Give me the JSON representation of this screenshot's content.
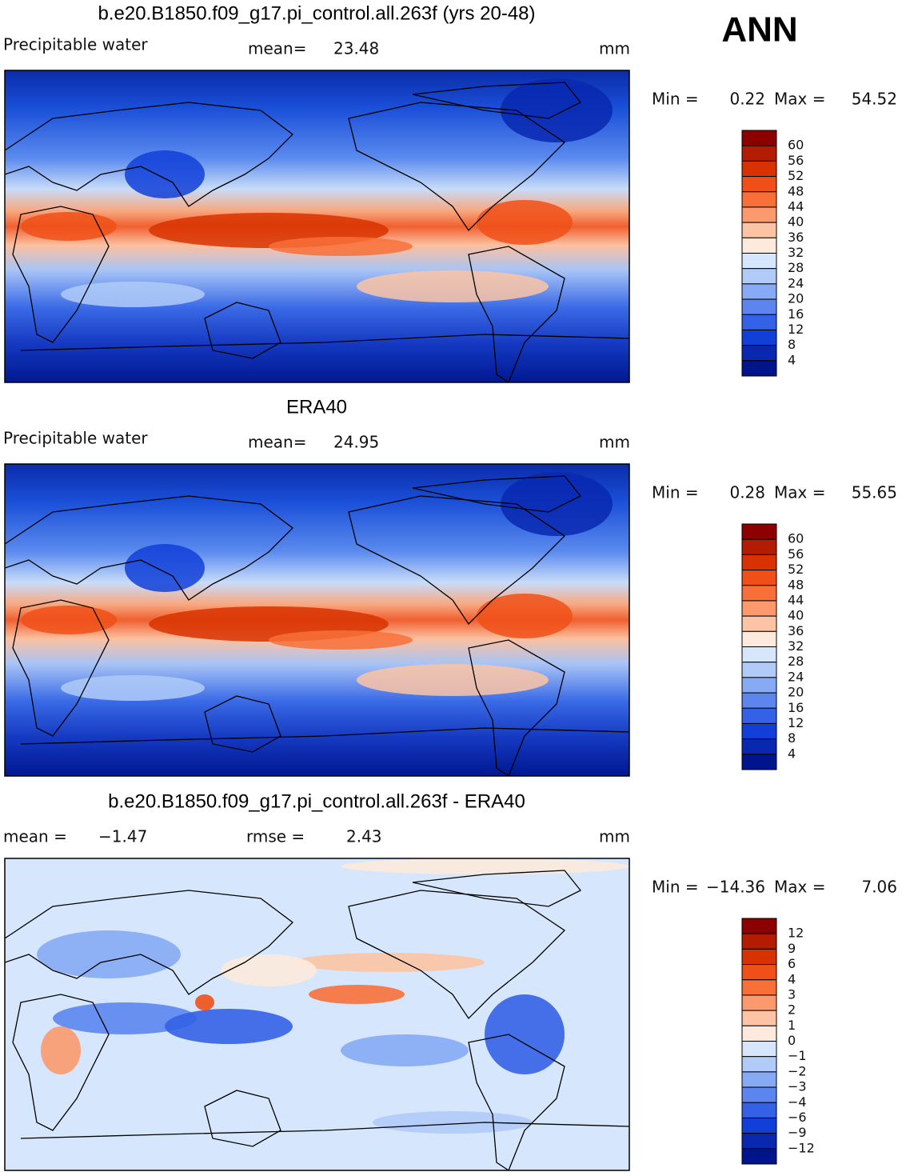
{
  "header": {
    "tag": "ANN"
  },
  "panels": [
    {
      "title": "b.e20.B1850.f09_g17.pi_control.all.263f (yrs 20-48)",
      "left_label": "Precipitable water",
      "stats": [
        {
          "label": "mean=",
          "value": "23.48"
        }
      ],
      "units": "mm",
      "min_label": "Min =",
      "min_value": "0.22",
      "max_label": "Max =",
      "max_value": "54.52",
      "colorbar": {
        "labels": [
          "60",
          "56",
          "52",
          "48",
          "44",
          "40",
          "36",
          "32",
          "28",
          "24",
          "20",
          "16",
          "12",
          "8",
          "4"
        ],
        "colors": [
          "#8c0000",
          "#b41c00",
          "#d83200",
          "#f05018",
          "#f87038",
          "#fc9a6e",
          "#fcc4a4",
          "#fdeadc",
          "#d6e6fc",
          "#b0cbf8",
          "#86aaf4",
          "#5c86ee",
          "#3462e6",
          "#1040d8",
          "#0828b0",
          "#00148c"
        ]
      }
    },
    {
      "title": "ERA40",
      "left_label": "Precipitable water",
      "stats": [
        {
          "label": "mean=",
          "value": "24.95"
        }
      ],
      "units": "mm",
      "min_label": "Min =",
      "min_value": "0.28",
      "max_label": "Max =",
      "max_value": "55.65",
      "colorbar": {
        "labels": [
          "60",
          "56",
          "52",
          "48",
          "44",
          "40",
          "36",
          "32",
          "28",
          "24",
          "20",
          "16",
          "12",
          "8",
          "4"
        ],
        "colors": [
          "#8c0000",
          "#b41c00",
          "#d83200",
          "#f05018",
          "#f87038",
          "#fc9a6e",
          "#fcc4a4",
          "#fdeadc",
          "#d6e6fc",
          "#b0cbf8",
          "#86aaf4",
          "#5c86ee",
          "#3462e6",
          "#1040d8",
          "#0828b0",
          "#00148c"
        ]
      }
    },
    {
      "title": "b.e20.B1850.f09_g17.pi_control.all.263f - ERA40",
      "stats": [
        {
          "label": "mean =",
          "value": "−1.47"
        },
        {
          "label": "rmse =",
          "value": "2.43"
        }
      ],
      "units": "mm",
      "min_label": "Min =",
      "min_value": "−14.36",
      "max_label": "Max =",
      "max_value": "7.06",
      "colorbar": {
        "labels": [
          "12",
          "9",
          "6",
          "4",
          "3",
          "2",
          "1",
          "0",
          "−1",
          "−2",
          "−3",
          "−4",
          "−6",
          "−9",
          "−12"
        ],
        "colors": [
          "#8c0000",
          "#b41c00",
          "#d83200",
          "#f05018",
          "#f87038",
          "#fc9a6e",
          "#fcc4a4",
          "#fdeadc",
          "#d6e6fc",
          "#b0cbf8",
          "#86aaf4",
          "#5c86ee",
          "#3462e6",
          "#1040d8",
          "#0828b0",
          "#00148c"
        ]
      }
    }
  ]
}
